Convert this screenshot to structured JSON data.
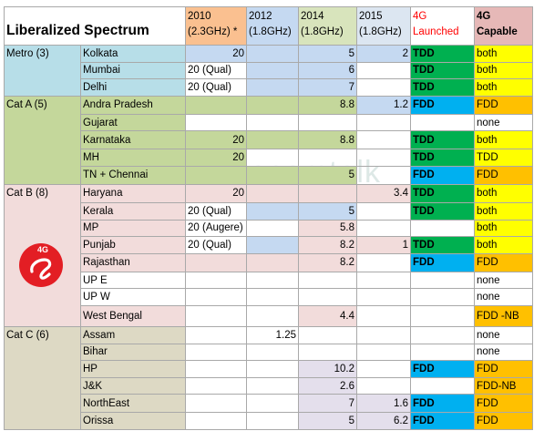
{
  "header": {
    "title": "Liberalized Spectrum",
    "c2010": [
      "2010",
      "(2.3GHz) *"
    ],
    "c2012": [
      "2012",
      "(1.8GHz)"
    ],
    "c2014": [
      "2014",
      "(1.8GHz)"
    ],
    "c2015": [
      "2015",
      "(1.8GHz)"
    ],
    "launched": [
      "4G",
      "Launched"
    ],
    "capable": [
      "4G",
      "Capable"
    ]
  },
  "categories": {
    "metro": "Metro (3)",
    "cat_a": "Cat A (5)",
    "cat_b": "Cat B (8)",
    "cat_c": "Cat C (6)"
  },
  "rows": [
    {
      "circle": "Kolkata",
      "y2010": "20",
      "y2012": "",
      "y2014": "5",
      "y2015": "2",
      "launched": "TDD",
      "capable": "both"
    },
    {
      "circle": "Mumbai",
      "y2010": "20 (Qual)",
      "y2012": "",
      "y2014": "6",
      "y2015": "",
      "launched": "TDD",
      "capable": "both"
    },
    {
      "circle": "Delhi",
      "y2010": "20 (Qual)",
      "y2012": "",
      "y2014": "7",
      "y2015": "",
      "launched": "TDD",
      "capable": "both"
    },
    {
      "circle": "Andra Pradesh",
      "y2010": "",
      "y2012": "",
      "y2014": "8.8",
      "y2015": "1.2",
      "launched": "FDD",
      "capable": "FDD"
    },
    {
      "circle": "Gujarat",
      "y2010": "",
      "y2012": "",
      "y2014": "",
      "y2015": "",
      "launched": "",
      "capable": "none"
    },
    {
      "circle": "Karnataka",
      "y2010": "20",
      "y2012": "",
      "y2014": "8.8",
      "y2015": "",
      "launched": "TDD",
      "capable": "both"
    },
    {
      "circle": "MH",
      "y2010": "20",
      "y2012": "",
      "y2014": "",
      "y2015": "",
      "launched": "TDD",
      "capable": "TDD"
    },
    {
      "circle": "TN + Chennai",
      "y2010": "",
      "y2012": "",
      "y2014": "5",
      "y2015": "",
      "launched": "FDD",
      "capable": "FDD"
    },
    {
      "circle": "Haryana",
      "y2010": "20",
      "y2012": "",
      "y2014": "",
      "y2015": "3.4",
      "launched": "TDD",
      "capable": "both"
    },
    {
      "circle": "Kerala",
      "y2010": "20 (Qual)",
      "y2012": "",
      "y2014": "5",
      "y2015": "",
      "launched": "TDD",
      "capable": "both"
    },
    {
      "circle": "MP",
      "y2010": "20 (Augere)",
      "y2012": "",
      "y2014": "5.8",
      "y2015": "",
      "launched": "",
      "capable": "both"
    },
    {
      "circle": "Punjab",
      "y2010": "20 (Qual)",
      "y2012": "",
      "y2014": "8.2",
      "y2015": "1",
      "launched": "TDD",
      "capable": "both"
    },
    {
      "circle": "Rajasthan",
      "y2010": "",
      "y2012": "",
      "y2014": "8.2",
      "y2015": "",
      "launched": "FDD",
      "capable": "FDD"
    },
    {
      "circle": "UP E",
      "y2010": "",
      "y2012": "",
      "y2014": "",
      "y2015": "",
      "launched": "",
      "capable": "none"
    },
    {
      "circle": "UP W",
      "y2010": "",
      "y2012": "",
      "y2014": "",
      "y2015": "",
      "launched": "",
      "capable": "none"
    },
    {
      "circle": "West Bengal",
      "y2010": "",
      "y2012": "",
      "y2014": "4.4",
      "y2015": "",
      "launched": "",
      "capable": "FDD -NB"
    },
    {
      "circle": "Assam",
      "y2010": "",
      "y2012": "1.25",
      "y2014": "",
      "y2015": "",
      "launched": "",
      "capable": "none"
    },
    {
      "circle": "Bihar",
      "y2010": "",
      "y2012": "",
      "y2014": "",
      "y2015": "",
      "launched": "",
      "capable": "none"
    },
    {
      "circle": "HP",
      "y2010": "",
      "y2012": "",
      "y2014": "10.2",
      "y2015": "",
      "launched": "FDD",
      "capable": "FDD"
    },
    {
      "circle": "J&K",
      "y2010": "",
      "y2012": "",
      "y2014": "2.6",
      "y2015": "",
      "launched": "",
      "capable": "FDD-NB"
    },
    {
      "circle": "NorthEast",
      "y2010": "",
      "y2012": "",
      "y2014": "7",
      "y2015": "1.6",
      "launched": "FDD",
      "capable": "FDD"
    },
    {
      "circle": "Orissa",
      "y2010": "",
      "y2012": "",
      "y2014": "5",
      "y2015": "6.2",
      "launched": "FDD",
      "capable": "FDD"
    }
  ],
  "logo": {
    "text": "4G",
    "color": "#e31e24"
  },
  "watermark": "telecomtalk",
  "colors": {
    "tdd": "#00b050",
    "fdd": "#00b0f0",
    "both": "#ffff00",
    "fdd_capable": "#ffc000",
    "metro": "#b7dee8",
    "cat_a": "#c4d79b",
    "cat_b": "#f2dcdb",
    "cat_c": "#ddd9c4"
  }
}
